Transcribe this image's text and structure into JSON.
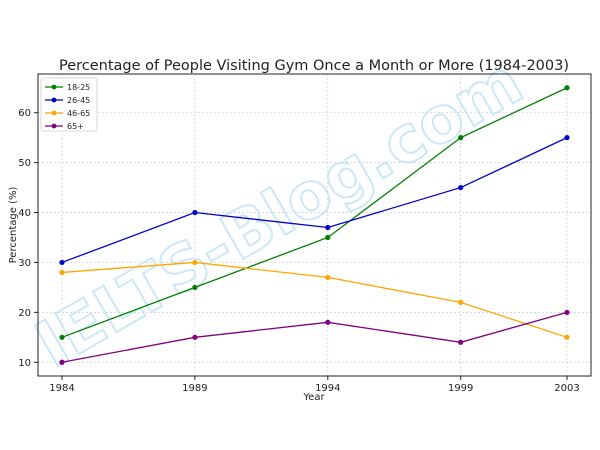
{
  "watermark": "IELTS-Blog.com",
  "chart_data": {
    "type": "line",
    "title": "Percentage of People Visiting Gym Once a Month or More (1984-2003)",
    "xlabel": "Year",
    "ylabel": "Percentage (%)",
    "x": [
      1984,
      1989,
      1994,
      1999,
      2003
    ],
    "x_tick_labels": [
      "1984",
      "1989",
      "1994",
      "1999",
      "2003"
    ],
    "ylim": [
      7.25,
      67.75
    ],
    "y_ticks": [
      10,
      20,
      30,
      40,
      50,
      60
    ],
    "grid": true,
    "legend_position": "top-left",
    "series": [
      {
        "name": "18-25",
        "color": "#008000",
        "values": [
          15,
          25,
          35,
          55,
          65
        ]
      },
      {
        "name": "26-45",
        "color": "#0000cc",
        "values": [
          30,
          40,
          37,
          45,
          55
        ]
      },
      {
        "name": "46-65",
        "color": "#ffa500",
        "values": [
          28,
          30,
          27,
          22,
          15
        ]
      },
      {
        "name": "65+",
        "color": "#800080",
        "values": [
          10,
          15,
          18,
          14,
          20
        ]
      }
    ]
  }
}
